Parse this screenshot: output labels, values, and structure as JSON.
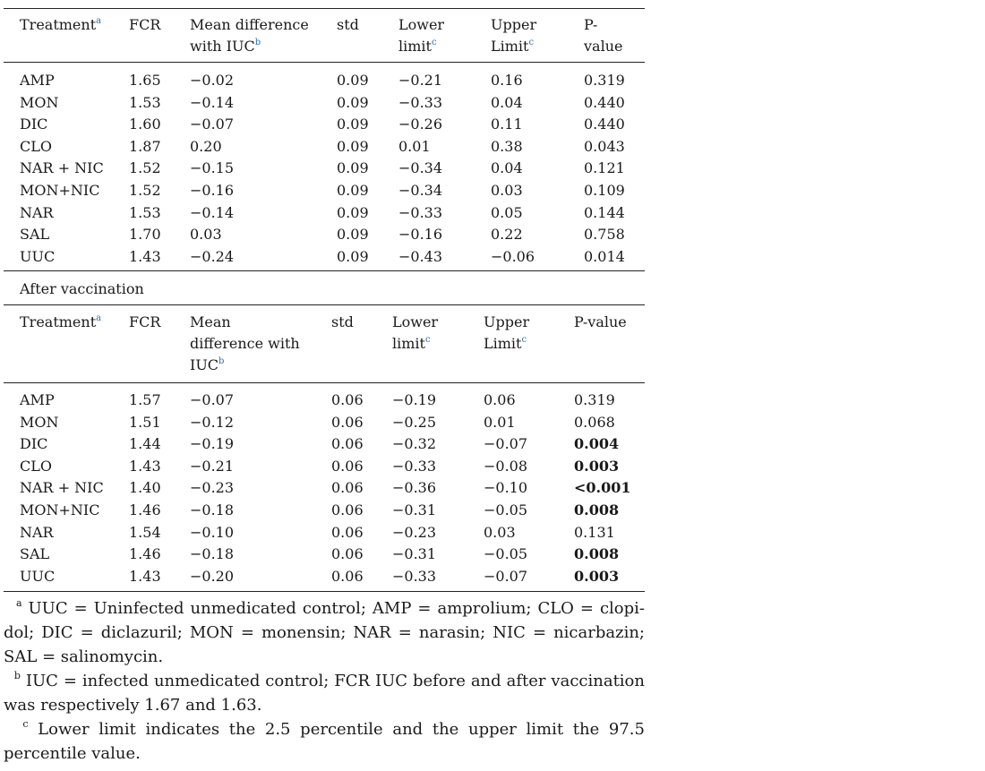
{
  "table_before": {
    "headers": {
      "treatment": "Treatment",
      "treatment_sup": "a",
      "fcr": "FCR",
      "mean_line1": "Mean difference",
      "mean_line2": "with IUC",
      "mean_sup": "b",
      "std": "std",
      "lower_line1": "Lower",
      "lower_line2": "limit",
      "lower_sup": "c",
      "upper_line1": "Upper",
      "upper_line2": "Limit",
      "upper_sup": "c",
      "p_line1": "P-",
      "p_line2": "value"
    },
    "rows": [
      {
        "t": "AMP",
        "fcr": "1.65",
        "md": "−0.02",
        "std": "0.09",
        "lo": "−0.21",
        "up": "0.16",
        "p": "0.319",
        "bold": false
      },
      {
        "t": "MON",
        "fcr": "1.53",
        "md": "−0.14",
        "std": "0.09",
        "lo": "−0.33",
        "up": "0.04",
        "p": "0.440",
        "bold": false
      },
      {
        "t": "DIC",
        "fcr": "1.60",
        "md": "−0.07",
        "std": "0.09",
        "lo": "−0.26",
        "up": "0.11",
        "p": "0.440",
        "bold": false
      },
      {
        "t": "CLO",
        "fcr": "1.87",
        "md": "0.20",
        "std": "0.09",
        "lo": "0.01",
        "up": "0.38",
        "p": "0.043",
        "bold": false
      },
      {
        "t": "NAR + NIC",
        "fcr": "1.52",
        "md": "−0.15",
        "std": "0.09",
        "lo": "−0.34",
        "up": "0.04",
        "p": "0.121",
        "bold": false
      },
      {
        "t": "MON+NIC",
        "fcr": "1.52",
        "md": "−0.16",
        "std": "0.09",
        "lo": "−0.34",
        "up": "0.03",
        "p": "0.109",
        "bold": false
      },
      {
        "t": "NAR",
        "fcr": "1.53",
        "md": "−0.14",
        "std": "0.09",
        "lo": "−0.33",
        "up": "0.05",
        "p": "0.144",
        "bold": false
      },
      {
        "t": "SAL",
        "fcr": "1.70",
        "md": "0.03",
        "std": "0.09",
        "lo": "−0.16",
        "up": "0.22",
        "p": "0.758",
        "bold": false
      },
      {
        "t": "UUC",
        "fcr": "1.43",
        "md": "−0.24",
        "std": "0.09",
        "lo": "−0.43",
        "up": "−0.06",
        "p": "0.014",
        "bold": false
      }
    ]
  },
  "section_label": "After vaccination",
  "table_after": {
    "headers": {
      "treatment": "Treatment",
      "treatment_sup": "a",
      "fcr": "FCR",
      "mean_line1": "Mean",
      "mean_line2": "difference with",
      "mean_line3": "IUC",
      "mean_sup": "b",
      "std": "std",
      "lower_line1": "Lower",
      "lower_line2": "limit",
      "lower_sup": "c",
      "upper_line1": "Upper",
      "upper_line2": "Limit",
      "upper_sup": "c",
      "p": "P-value"
    },
    "rows": [
      {
        "t": "AMP",
        "fcr": "1.57",
        "md": "−0.07",
        "std": "0.06",
        "lo": "−0.19",
        "up": "0.06",
        "p": "0.319",
        "bold": false
      },
      {
        "t": "MON",
        "fcr": "1.51",
        "md": "−0.12",
        "std": "0.06",
        "lo": "−0.25",
        "up": "0.01",
        "p": "0.068",
        "bold": false
      },
      {
        "t": "DIC",
        "fcr": "1.44",
        "md": "−0.19",
        "std": "0.06",
        "lo": "−0.32",
        "up": "−0.07",
        "p": "0.004",
        "bold": true
      },
      {
        "t": "CLO",
        "fcr": "1.43",
        "md": "−0.21",
        "std": "0.06",
        "lo": "−0.33",
        "up": "−0.08",
        "p": "0.003",
        "bold": true
      },
      {
        "t": "NAR + NIC",
        "fcr": "1.40",
        "md": "−0.23",
        "std": "0.06",
        "lo": "−0.36",
        "up": "−0.10",
        "p": "<0.001",
        "bold": true
      },
      {
        "t": "MON+NIC",
        "fcr": "1.46",
        "md": "−0.18",
        "std": "0.06",
        "lo": "−0.31",
        "up": "−0.05",
        "p": "0.008",
        "bold": true
      },
      {
        "t": "NAR",
        "fcr": "1.54",
        "md": "−0.10",
        "std": "0.06",
        "lo": "−0.23",
        "up": "0.03",
        "p": "0.131",
        "bold": false
      },
      {
        "t": "SAL",
        "fcr": "1.46",
        "md": "−0.18",
        "std": "0.06",
        "lo": "−0.31",
        "up": "−0.05",
        "p": "0.008",
        "bold": true
      },
      {
        "t": "UUC",
        "fcr": "1.43",
        "md": "−0.20",
        "std": "0.06",
        "lo": "−0.33",
        "up": "−0.07",
        "p": "0.003",
        "bold": true
      }
    ]
  },
  "footnotes": [
    {
      "mark": "a",
      "text": "UUC = Uninfected unmedicated control; AMP = amprolium; CLO = clopi-dol; DIC = diclazuril; MON = monensin; NAR = narasin; NIC = nicarbazin; SAL = salinomycin."
    },
    {
      "mark": "b",
      "text": "IUC = infected unmedicated control; FCR IUC before and after vaccination was respectively 1.67 and 1.63."
    },
    {
      "mark": "c",
      "text": "Lower limit indicates the 2.5 percentile and the upper limit the 97.5 percentile value."
    }
  ]
}
